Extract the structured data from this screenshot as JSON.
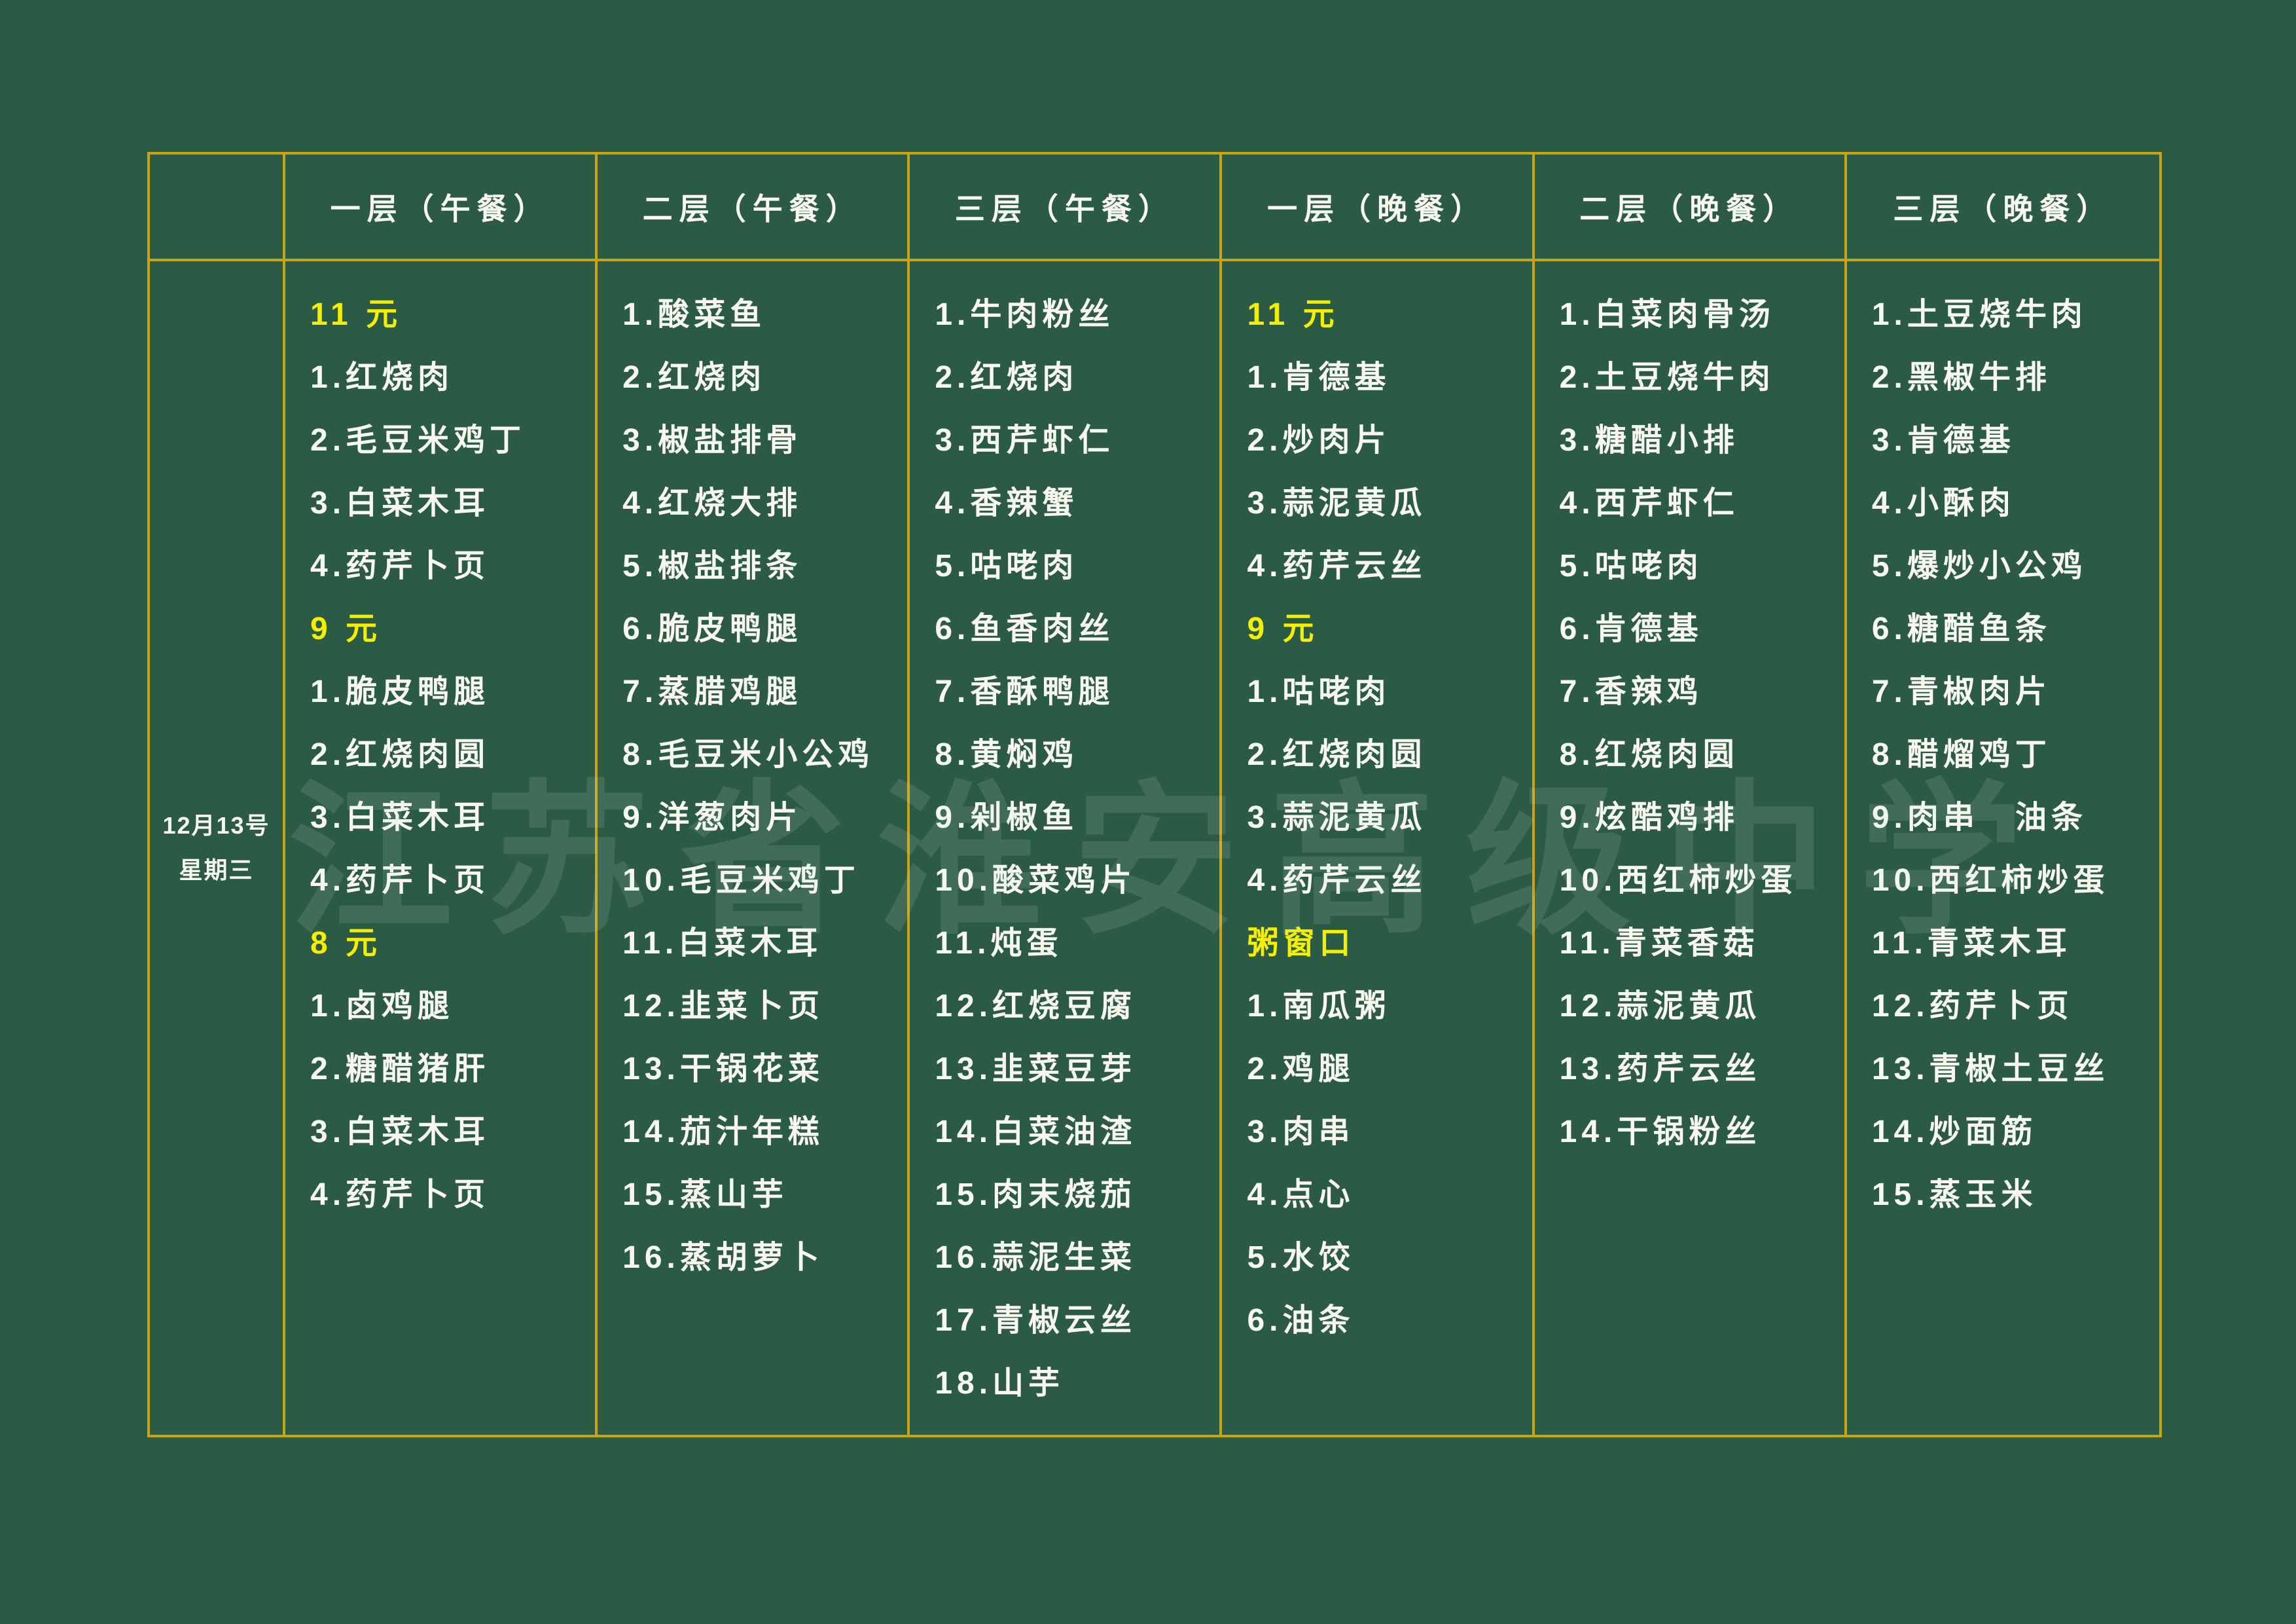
{
  "board": {
    "watermark": "江苏省淮安高级中学",
    "date_line1": "12月13号",
    "date_line2": "星期三",
    "columns": [
      {
        "header": "一层（午餐）",
        "items": [
          {
            "text": "11 元",
            "type": "price"
          },
          {
            "text": "1.红烧肉",
            "type": "dish"
          },
          {
            "text": "2.毛豆米鸡丁",
            "type": "dish"
          },
          {
            "text": "3.白菜木耳",
            "type": "dish"
          },
          {
            "text": "4.药芹卜页",
            "type": "dish"
          },
          {
            "text": "9 元",
            "type": "price"
          },
          {
            "text": "1.脆皮鸭腿",
            "type": "dish"
          },
          {
            "text": "2.红烧肉圆",
            "type": "dish"
          },
          {
            "text": "3.白菜木耳",
            "type": "dish"
          },
          {
            "text": "4.药芹卜页",
            "type": "dish"
          },
          {
            "text": "8 元",
            "type": "price"
          },
          {
            "text": "1.卤鸡腿",
            "type": "dish"
          },
          {
            "text": "2.糖醋猪肝",
            "type": "dish"
          },
          {
            "text": "3.白菜木耳",
            "type": "dish"
          },
          {
            "text": "4.药芹卜页",
            "type": "dish"
          }
        ]
      },
      {
        "header": "二层（午餐）",
        "items": [
          {
            "text": "1.酸菜鱼",
            "type": "dish"
          },
          {
            "text": "2.红烧肉",
            "type": "dish"
          },
          {
            "text": "3.椒盐排骨",
            "type": "dish"
          },
          {
            "text": "4.红烧大排",
            "type": "dish"
          },
          {
            "text": "5.椒盐排条",
            "type": "dish"
          },
          {
            "text": "6.脆皮鸭腿",
            "type": "dish"
          },
          {
            "text": "7.蒸腊鸡腿",
            "type": "dish"
          },
          {
            "text": "8.毛豆米小公鸡",
            "type": "dish"
          },
          {
            "text": "9.洋葱肉片",
            "type": "dish"
          },
          {
            "text": "10.毛豆米鸡丁",
            "type": "dish"
          },
          {
            "text": "11.白菜木耳",
            "type": "dish"
          },
          {
            "text": "12.韭菜卜页",
            "type": "dish"
          },
          {
            "text": "13.干锅花菜",
            "type": "dish"
          },
          {
            "text": "14.茄汁年糕",
            "type": "dish"
          },
          {
            "text": "15.蒸山芋",
            "type": "dish"
          },
          {
            "text": "16.蒸胡萝卜",
            "type": "dish"
          }
        ]
      },
      {
        "header": "三层（午餐）",
        "items": [
          {
            "text": "1.牛肉粉丝",
            "type": "dish"
          },
          {
            "text": "2.红烧肉",
            "type": "dish"
          },
          {
            "text": "3.西芹虾仁",
            "type": "dish"
          },
          {
            "text": "4.香辣蟹",
            "type": "dish"
          },
          {
            "text": "5.咕咾肉",
            "type": "dish"
          },
          {
            "text": "6.鱼香肉丝",
            "type": "dish"
          },
          {
            "text": "7.香酥鸭腿",
            "type": "dish"
          },
          {
            "text": "8.黄焖鸡",
            "type": "dish"
          },
          {
            "text": "9.剁椒鱼",
            "type": "dish"
          },
          {
            "text": "10.酸菜鸡片",
            "type": "dish"
          },
          {
            "text": "11.炖蛋",
            "type": "dish"
          },
          {
            "text": "12.红烧豆腐",
            "type": "dish"
          },
          {
            "text": "13.韭菜豆芽",
            "type": "dish"
          },
          {
            "text": "14.白菜油渣",
            "type": "dish"
          },
          {
            "text": "15.肉末烧茄",
            "type": "dish"
          },
          {
            "text": "16.蒜泥生菜",
            "type": "dish"
          },
          {
            "text": "17.青椒云丝",
            "type": "dish"
          },
          {
            "text": "18.山芋",
            "type": "dish"
          }
        ]
      },
      {
        "header": "一层（晚餐）",
        "items": [
          {
            "text": "11 元",
            "type": "price"
          },
          {
            "text": "1.肯德基",
            "type": "dish"
          },
          {
            "text": "2.炒肉片",
            "type": "dish"
          },
          {
            "text": "3.蒜泥黄瓜",
            "type": "dish"
          },
          {
            "text": "4.药芹云丝",
            "type": "dish"
          },
          {
            "text": "9 元",
            "type": "price"
          },
          {
            "text": "1.咕咾肉",
            "type": "dish"
          },
          {
            "text": "2.红烧肉圆",
            "type": "dish"
          },
          {
            "text": "3.蒜泥黄瓜",
            "type": "dish"
          },
          {
            "text": "4.药芹云丝",
            "type": "dish"
          },
          {
            "text": "粥窗口",
            "type": "price"
          },
          {
            "text": "1.南瓜粥",
            "type": "dish"
          },
          {
            "text": "2.鸡腿",
            "type": "dish"
          },
          {
            "text": "3.肉串",
            "type": "dish"
          },
          {
            "text": "4.点心",
            "type": "dish"
          },
          {
            "text": "5.水饺",
            "type": "dish"
          },
          {
            "text": "6.油条",
            "type": "dish"
          }
        ]
      },
      {
        "header": "二层（晚餐）",
        "items": [
          {
            "text": "1.白菜肉骨汤",
            "type": "dish"
          },
          {
            "text": "2.土豆烧牛肉",
            "type": "dish"
          },
          {
            "text": "3.糖醋小排",
            "type": "dish"
          },
          {
            "text": "4.西芹虾仁",
            "type": "dish"
          },
          {
            "text": "5.咕咾肉",
            "type": "dish"
          },
          {
            "text": "6.肯德基",
            "type": "dish"
          },
          {
            "text": "7.香辣鸡",
            "type": "dish"
          },
          {
            "text": "8.红烧肉圆",
            "type": "dish"
          },
          {
            "text": "9.炫酷鸡排",
            "type": "dish"
          },
          {
            "text": "10.西红柿炒蛋",
            "type": "dish"
          },
          {
            "text": "11.青菜香菇",
            "type": "dish"
          },
          {
            "text": "12.蒜泥黄瓜",
            "type": "dish"
          },
          {
            "text": "13.药芹云丝",
            "type": "dish"
          },
          {
            "text": "14.干锅粉丝",
            "type": "dish"
          }
        ]
      },
      {
        "header": "三层（晚餐）",
        "items": [
          {
            "text": "1.土豆烧牛肉",
            "type": "dish"
          },
          {
            "text": "2.黑椒牛排",
            "type": "dish"
          },
          {
            "text": "3.肯德基",
            "type": "dish"
          },
          {
            "text": "4.小酥肉",
            "type": "dish"
          },
          {
            "text": "5.爆炒小公鸡",
            "type": "dish"
          },
          {
            "text": "6.糖醋鱼条",
            "type": "dish"
          },
          {
            "text": "7.青椒肉片",
            "type": "dish"
          },
          {
            "text": "8.醋熘鸡丁",
            "type": "dish"
          },
          {
            "text": "9.肉串　油条",
            "type": "dish"
          },
          {
            "text": "10.西红柿炒蛋",
            "type": "dish"
          },
          {
            "text": "11.青菜木耳",
            "type": "dish"
          },
          {
            "text": "12.药芹卜页",
            "type": "dish"
          },
          {
            "text": "13.青椒土豆丝",
            "type": "dish"
          },
          {
            "text": "14.炒面筋",
            "type": "dish"
          },
          {
            "text": "15.蒸玉米",
            "type": "dish"
          }
        ]
      }
    ]
  },
  "colors": {
    "background": "#2b5a45",
    "grid_line": "#caa315",
    "dish_text": "#f8f8f0",
    "price_text": "#f4ee00"
  }
}
